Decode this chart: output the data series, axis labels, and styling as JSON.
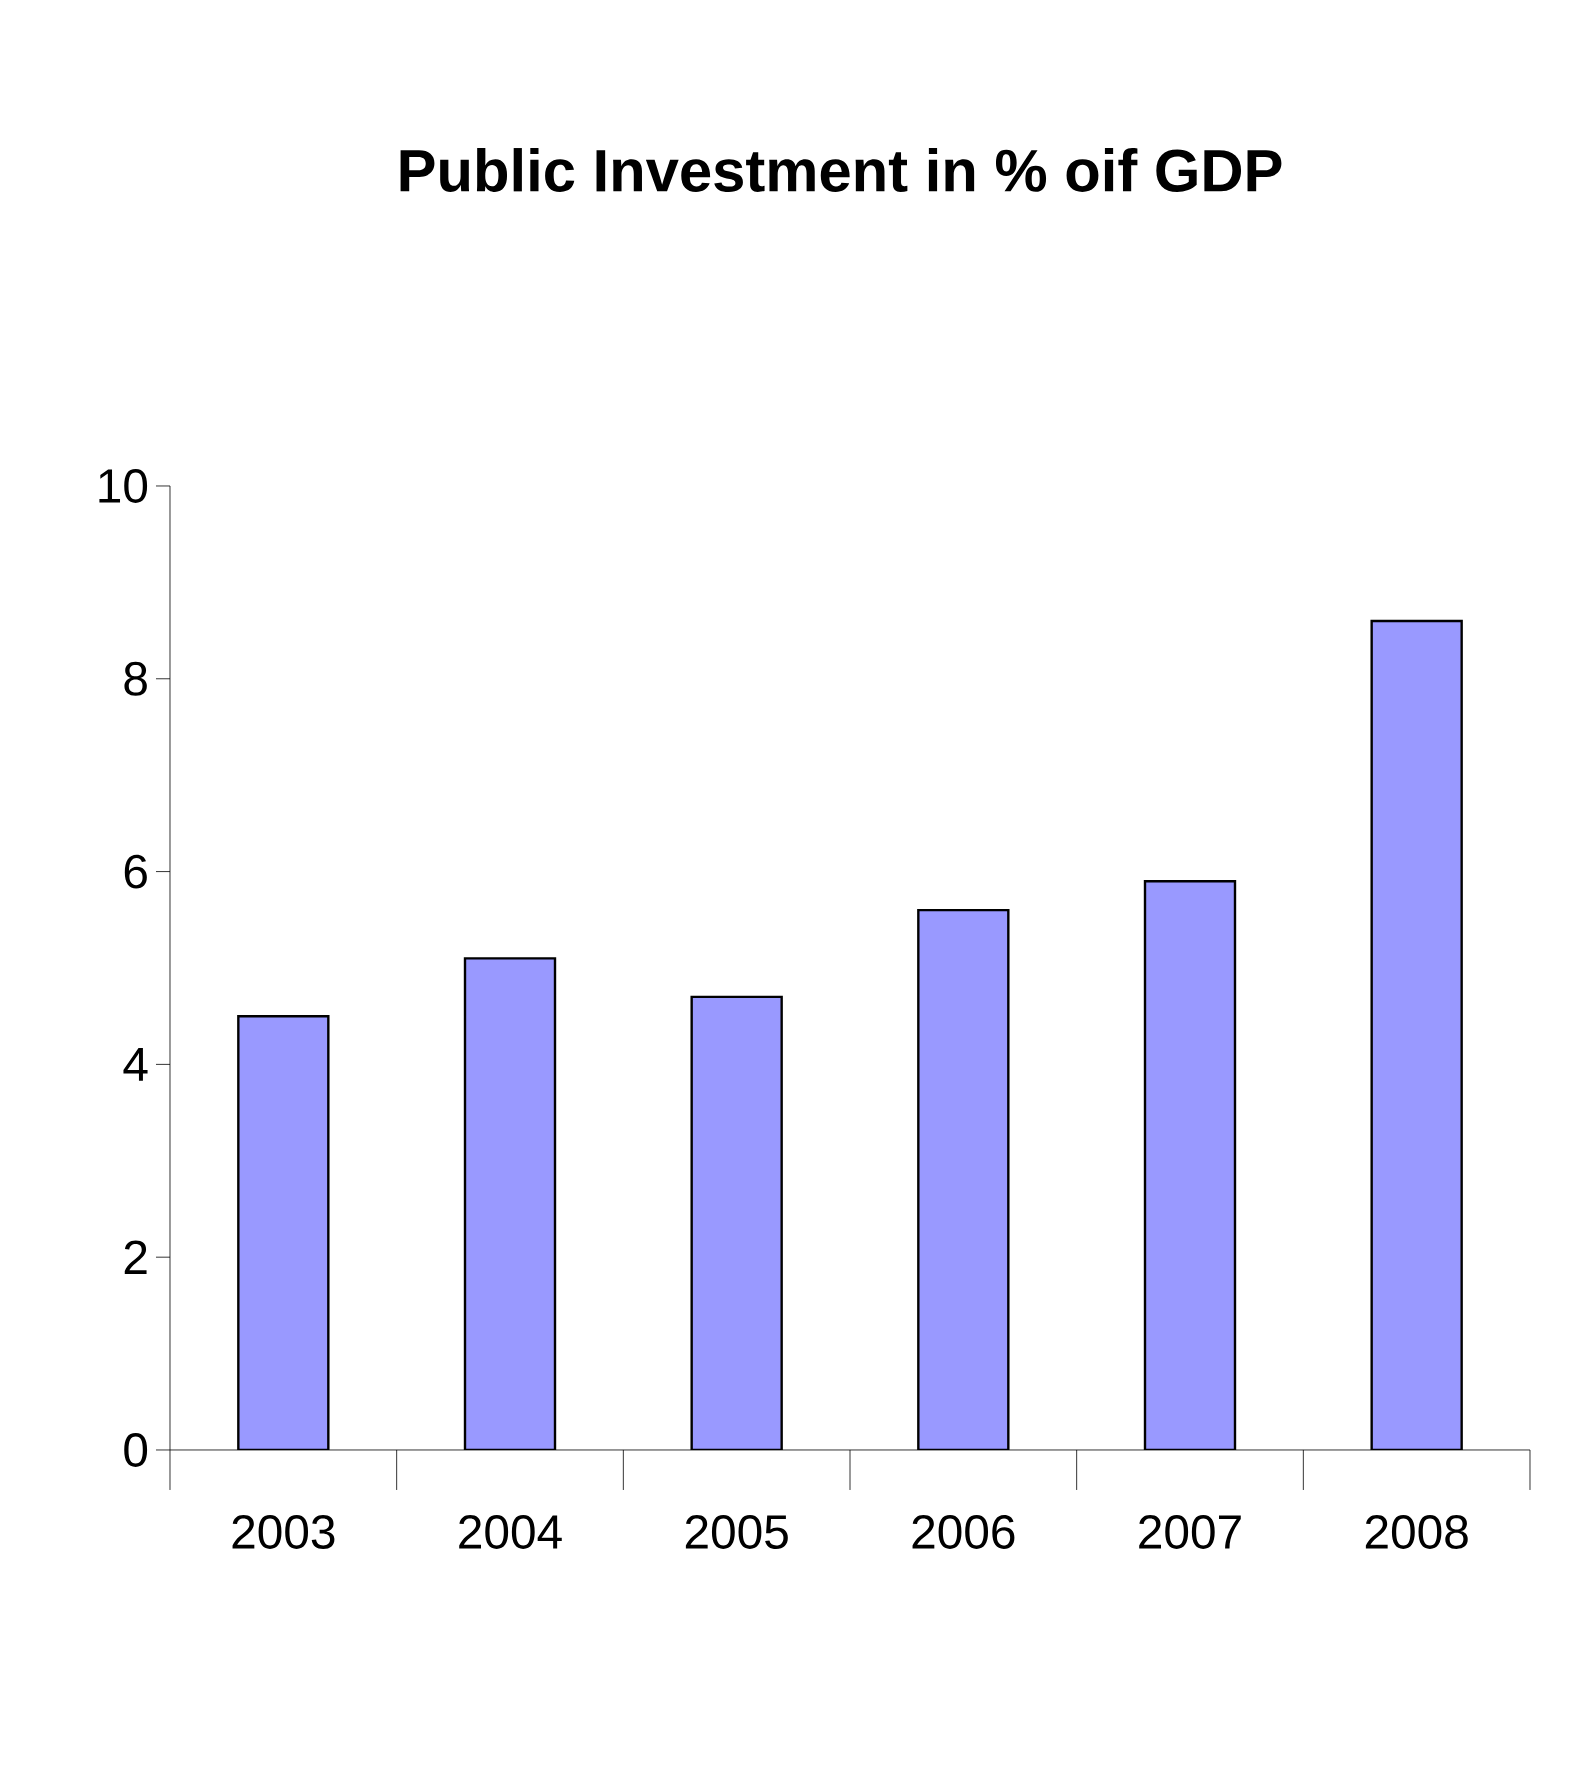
{
  "chart_data": {
    "type": "bar",
    "title": "Public Investment in % oif GDP",
    "categories": [
      "2003",
      "2004",
      "2005",
      "2006",
      "2007",
      "2008"
    ],
    "values": [
      4.5,
      5.1,
      4.7,
      5.6,
      5.9,
      8.6
    ],
    "color": "#9999ff",
    "ylim": [
      0,
      10
    ],
    "yticks": [
      0,
      2,
      4,
      6,
      8,
      10
    ],
    "grid": false
  }
}
